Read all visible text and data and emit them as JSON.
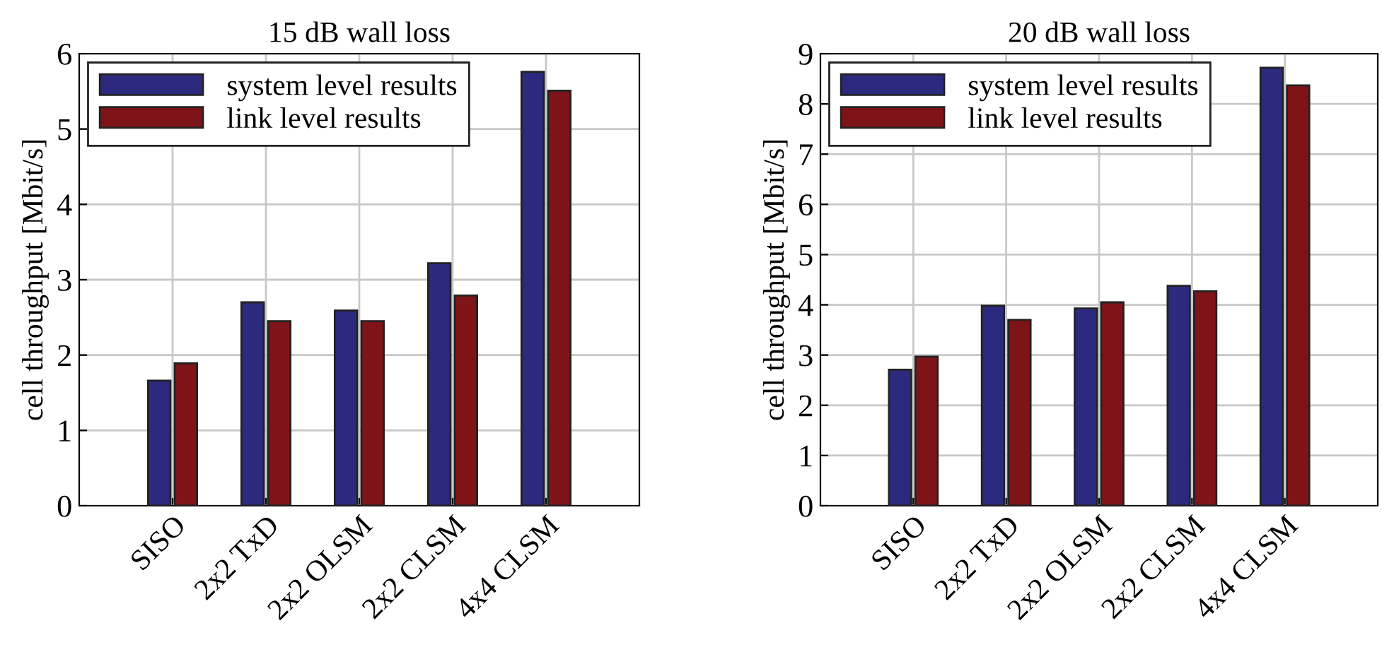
{
  "chart_data": [
    {
      "type": "bar",
      "title": "15 dB wall loss",
      "ylabel": "cell throughput [Mbit/s]",
      "categories": [
        "SISO",
        "2x2 TxD",
        "2x2 OLSM",
        "2x2 CLSM",
        "4x4 CLSM"
      ],
      "series": [
        {
          "name": "system level results",
          "color": "#2b2a7e",
          "values": [
            1.66,
            2.7,
            2.59,
            3.22,
            5.76
          ]
        },
        {
          "name": "link level results",
          "color": "#7f1418",
          "values": [
            1.89,
            2.45,
            2.45,
            2.79,
            5.51
          ]
        }
      ],
      "ylim": [
        0,
        6
      ],
      "yticks": [
        0,
        1,
        2,
        3,
        4,
        5,
        6
      ],
      "grid": true,
      "legend": "top left"
    },
    {
      "type": "bar",
      "title": "20 dB wall loss",
      "ylabel": "cell throughput [Mbit/s]",
      "categories": [
        "SISO",
        "2x2 TxD",
        "2x2 OLSM",
        "2x2 CLSM",
        "4x4 CLSM"
      ],
      "series": [
        {
          "name": "system level results",
          "color": "#2b2a7e",
          "values": [
            2.71,
            3.98,
            3.93,
            4.38,
            8.72
          ]
        },
        {
          "name": "link level results",
          "color": "#7f1418",
          "values": [
            2.97,
            3.7,
            4.05,
            4.27,
            8.37
          ]
        }
      ],
      "ylim": [
        0,
        9
      ],
      "yticks": [
        0,
        1,
        2,
        3,
        4,
        5,
        6,
        7,
        8,
        9
      ],
      "grid": true,
      "legend": "top left"
    }
  ]
}
